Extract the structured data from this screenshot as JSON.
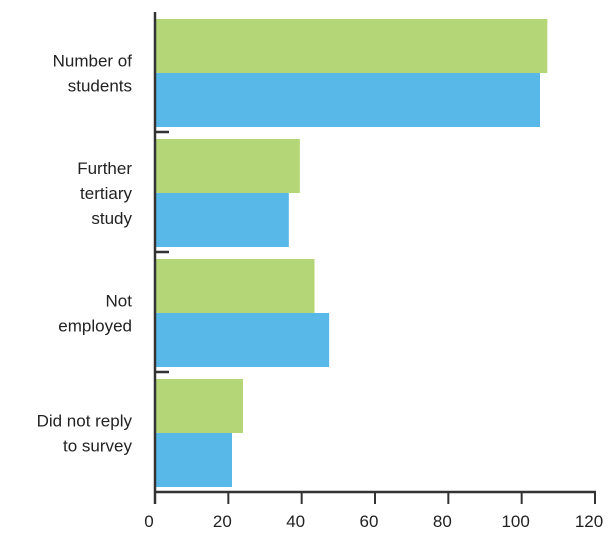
{
  "chart_data": {
    "type": "bar",
    "orientation": "horizontal",
    "title": "",
    "xlabel": "",
    "ylabel": "",
    "xlim": [
      0,
      120
    ],
    "x_ticks": [
      0,
      20,
      40,
      60,
      80,
      100,
      120
    ],
    "grid": false,
    "legend": "none",
    "categories": [
      [
        "Number of",
        "students"
      ],
      [
        "Further",
        "tertiary",
        "study"
      ],
      [
        "Not",
        "employed"
      ],
      [
        "Did not reply",
        "to survey"
      ]
    ],
    "series": [
      {
        "color": "#b5d676",
        "values": [
          107,
          39.5,
          43.5,
          24
        ]
      },
      {
        "color": "#58b8e8",
        "values": [
          105,
          36.5,
          47.5,
          21
        ]
      }
    ]
  }
}
